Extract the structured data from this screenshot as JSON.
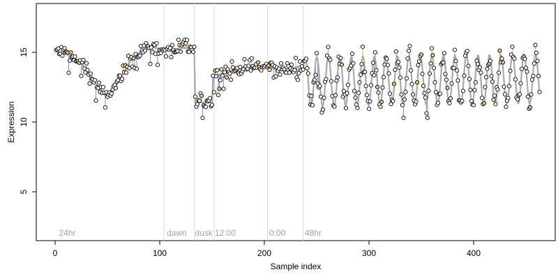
{
  "chart_data": {
    "type": "scatter",
    "title": "",
    "xlabel": "Sample index",
    "ylabel": "Expression",
    "xlim": [
      -18,
      478
    ],
    "ylim": [
      1.5,
      18.5
    ],
    "x_ticks": [
      0,
      100,
      200,
      300,
      400
    ],
    "y_ticks": [
      5,
      10,
      15
    ],
    "grid": false,
    "legend": "none",
    "colors": {
      "trend_line": "#a8a8a8",
      "residual_above": "#f0a030",
      "residual_below": "#6f97d8",
      "point_fill": "#ffffff",
      "point_edge": "#000000",
      "point_highlight": "#f5c26a",
      "separator": "#d9d9d9",
      "annotation": "#a0a0a0"
    },
    "separators": [
      104,
      133,
      152,
      203,
      237
    ],
    "annotations": [
      {
        "x": 3,
        "label": "24hr"
      },
      {
        "x": 106,
        "label": "dawn"
      },
      {
        "x": 133,
        "label": "dusk"
      },
      {
        "x": 152,
        "label": "12:00"
      },
      {
        "x": 204,
        "label": "0:00"
      },
      {
        "x": 238,
        "label": "48hr"
      }
    ],
    "segments": [
      {
        "x_start": 1,
        "x_end": 237,
        "trend": [
          [
            1,
            15.1
          ],
          [
            10,
            14.9
          ],
          [
            20,
            14.5
          ],
          [
            30,
            13.8
          ],
          [
            40,
            12.6
          ],
          [
            48,
            11.9
          ],
          [
            55,
            12.2
          ],
          [
            63,
            13.2
          ],
          [
            72,
            14.4
          ],
          [
            82,
            15.1
          ],
          [
            92,
            15.4
          ],
          [
            104,
            15.2
          ],
          [
            112,
            15.2
          ],
          [
            122,
            15.3
          ],
          [
            130,
            15.3
          ],
          [
            133,
            15.0
          ],
          [
            134,
            11.4
          ],
          [
            150,
            11.4
          ],
          [
            151,
            13.3
          ],
          [
            165,
            13.6
          ],
          [
            180,
            13.9
          ],
          [
            195,
            14.0
          ],
          [
            210,
            13.8
          ],
          [
            225,
            13.8
          ],
          [
            237,
            14.1
          ]
        ],
        "spread": 0.45
      },
      {
        "x_start": 238,
        "x_end": 463,
        "trend": [
          [
            238,
            12.9
          ],
          [
            463,
            13.1
          ]
        ],
        "amplitude": 1.75,
        "period": 11,
        "phase": 0.9,
        "spread": 0.55
      }
    ],
    "points_summary": {
      "count": 463,
      "x_range": [
        1,
        463
      ],
      "y_range": [
        10.3,
        15.9
      ]
    }
  }
}
